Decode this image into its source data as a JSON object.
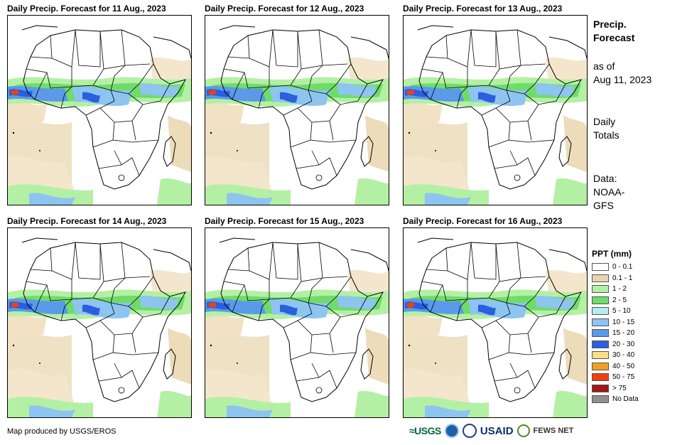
{
  "panels": [
    {
      "title": "Daily Precip. Forecast for 11 Aug., 2023"
    },
    {
      "title": "Daily Precip. Forecast for 12 Aug., 2023"
    },
    {
      "title": "Daily Precip. Forecast for 13 Aug., 2023"
    },
    {
      "title": "Daily Precip. Forecast for 14 Aug., 2023"
    },
    {
      "title": "Daily Precip. Forecast for 15 Aug., 2023"
    },
    {
      "title": "Daily Precip. Forecast for 16 Aug., 2023"
    }
  ],
  "sidebar": {
    "title_line1": "Precip.",
    "title_line2": "Forecast",
    "asof_line1": "as of",
    "asof_line2": "Aug 11, 2023",
    "totals_line1": "Daily",
    "totals_line2": "Totals",
    "data_line1": "Data:",
    "data_line2": "NOAA-",
    "data_line3": "GFS"
  },
  "legend": {
    "title": "PPT (mm)",
    "items": [
      {
        "label": "0 - 0.1",
        "color": "#ffffff"
      },
      {
        "label": "0.1 - 1",
        "color": "#e8d5b0"
      },
      {
        "label": "1 - 2",
        "color": "#b4f0a4"
      },
      {
        "label": "2 - 5",
        "color": "#6fdc6a"
      },
      {
        "label": "5 - 10",
        "color": "#b4ecf4"
      },
      {
        "label": "10 - 15",
        "color": "#8ec4f0"
      },
      {
        "label": "15 - 20",
        "color": "#5a9ae8"
      },
      {
        "label": "20 - 30",
        "color": "#2a5fe0"
      },
      {
        "label": "30 - 40",
        "color": "#f8e084"
      },
      {
        "label": "40 - 50",
        "color": "#f0a020"
      },
      {
        "label": "50 - 75",
        "color": "#f04010"
      },
      {
        "label": "> 75",
        "color": "#a01818"
      },
      {
        "label": "No Data",
        "color": "#909090"
      }
    ]
  },
  "footer": {
    "credit": "Map produced by USGS/EROS",
    "logo_usgs": "≈USGS",
    "logo_usaid": "USAID",
    "logo_fews": "FEWS NET"
  }
}
